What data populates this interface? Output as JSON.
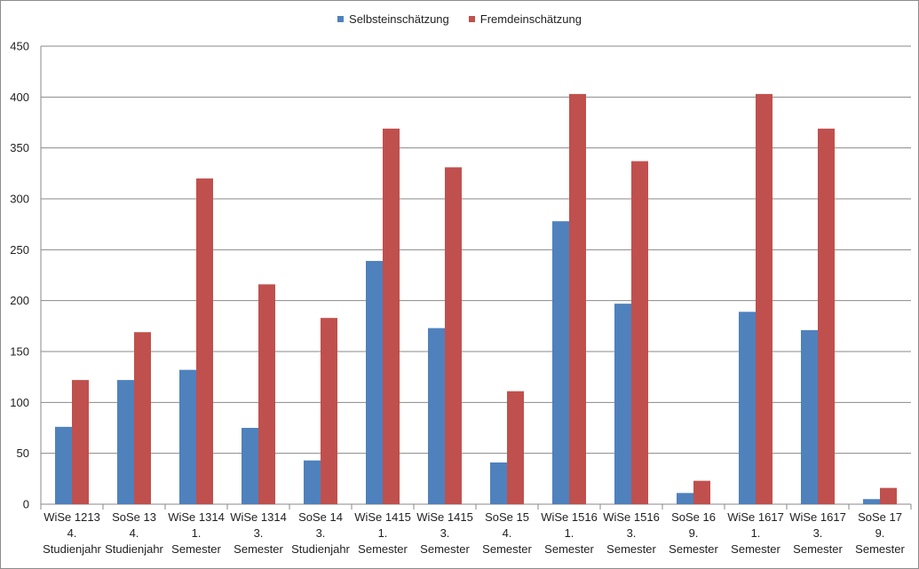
{
  "chart_data": {
    "type": "bar",
    "categories": [
      [
        "WiSe 1213",
        "4.",
        "Studienjahr"
      ],
      [
        "SoSe 13",
        "4.",
        "Studienjahr"
      ],
      [
        "WiSe 1314",
        "1.",
        "Semester"
      ],
      [
        "WiSe 1314",
        "3.",
        "Semester"
      ],
      [
        "SoSe 14",
        "3.",
        "Studienjahr"
      ],
      [
        "WiSe 1415",
        "1.",
        "Semester"
      ],
      [
        "WiSe 1415",
        "3.",
        "Semester"
      ],
      [
        "SoSe 15",
        "4.",
        "Semester"
      ],
      [
        "WiSe 1516",
        "1.",
        "Semester"
      ],
      [
        "WiSe 1516",
        "3.",
        "Semester"
      ],
      [
        "SoSe 16",
        "9.",
        "Semester"
      ],
      [
        "WiSe 1617",
        "1.",
        "Semester"
      ],
      [
        "WiSe 1617",
        "3.",
        "Semester"
      ],
      [
        "SoSe 17",
        "9.",
        "Semester"
      ]
    ],
    "series": [
      {
        "name": "Selbsteinschätzung",
        "color": "#4f81bd",
        "values": [
          76,
          122,
          132,
          75,
          43,
          239,
          173,
          41,
          278,
          197,
          11,
          189,
          171,
          5
        ]
      },
      {
        "name": "Fremdeinschätzung",
        "color": "#c0504d",
        "values": [
          122,
          169,
          320,
          216,
          183,
          369,
          331,
          111,
          403,
          337,
          23,
          403,
          369,
          16
        ]
      }
    ],
    "ylim": [
      0,
      450
    ],
    "yticks": [
      0,
      50,
      100,
      150,
      200,
      250,
      300,
      350,
      400,
      450
    ],
    "grid": true,
    "legend_position": "top-center"
  }
}
